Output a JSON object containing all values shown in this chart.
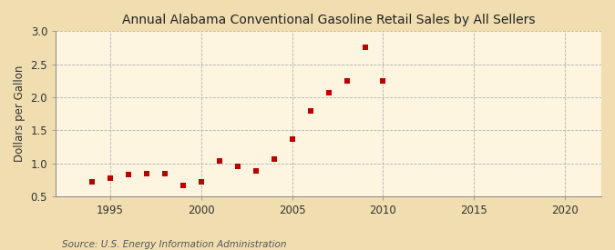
{
  "title": "Annual Alabama Conventional Gasoline Retail Sales by All Sellers",
  "ylabel": "Dollars per Gallon",
  "source": "Source: U.S. Energy Information Administration",
  "fig_background_color": "#f0deb0",
  "plot_background_color": "#fdf5e0",
  "marker_color": "#bb0000",
  "years": [
    1994,
    1995,
    1996,
    1997,
    1998,
    1999,
    2000,
    2001,
    2002,
    2003,
    2004,
    2005,
    2006,
    2007,
    2008,
    2009,
    2010
  ],
  "values": [
    0.72,
    0.77,
    0.83,
    0.84,
    0.84,
    0.66,
    0.72,
    1.04,
    0.95,
    0.89,
    1.06,
    1.36,
    1.8,
    2.07,
    2.25,
    2.76,
    2.25
  ],
  "xlim": [
    1992,
    2022
  ],
  "ylim": [
    0.5,
    3.0
  ],
  "xticks": [
    1995,
    2000,
    2005,
    2010,
    2015,
    2020
  ],
  "yticks": [
    0.5,
    1.0,
    1.5,
    2.0,
    2.5,
    3.0
  ],
  "title_fontsize": 10,
  "ylabel_fontsize": 8.5,
  "source_fontsize": 7.5,
  "tick_fontsize": 8.5,
  "grid_color": "#aaaaaa",
  "grid_linestyle": "--",
  "spine_color": "#888888"
}
